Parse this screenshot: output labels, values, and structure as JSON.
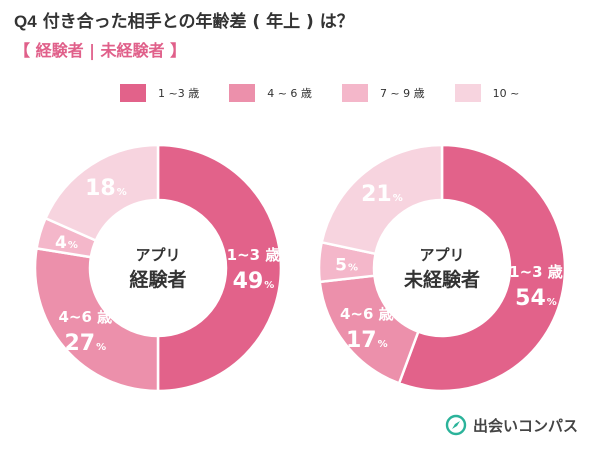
{
  "header": {
    "q_label": "Q4",
    "title": "付き合った相手との年齢差 ( 年上 ) は？",
    "subtitle": "【 経験者 | 未経験者 】"
  },
  "legend": [
    {
      "label": "1 ~3 歳",
      "color": "#e2628a"
    },
    {
      "label": "4 ~ 6 歳",
      "color": "#ec90ab"
    },
    {
      "label": "7 ~ 9 歳",
      "color": "#f4b7ca"
    },
    {
      "label": "10 ~",
      "color": "#f7d4df"
    }
  ],
  "chart_data": [
    {
      "type": "pie",
      "donut": true,
      "center_label": [
        "アプリ",
        "経験者"
      ],
      "categories": [
        "1~3 歳",
        "4~6 歳",
        "7~9 歳",
        "10 ~"
      ],
      "values": [
        49,
        27,
        4,
        18
      ],
      "value_unit": "%",
      "colors": [
        "#e2628a",
        "#ec90ab",
        "#f4b7ca",
        "#f7d4df"
      ],
      "data_labels": [
        {
          "name": "1~3 歳",
          "value": "49",
          "unit": "%"
        },
        {
          "name": "4~6 歳",
          "value": "27",
          "unit": "%"
        },
        {
          "name": "",
          "value": "4",
          "unit": "%"
        },
        {
          "name": "",
          "value": "18",
          "unit": "%"
        }
      ]
    },
    {
      "type": "pie",
      "donut": true,
      "center_label": [
        "アプリ",
        "未経験者"
      ],
      "categories": [
        "1~3 歳",
        "4~6 歳",
        "7~9 歳",
        "10 ~"
      ],
      "values": [
        54,
        17,
        5,
        21
      ],
      "value_unit": "%",
      "colors": [
        "#e2628a",
        "#ec90ab",
        "#f4b7ca",
        "#f7d4df"
      ],
      "data_labels": [
        {
          "name": "1~3 歳",
          "value": "54",
          "unit": "%"
        },
        {
          "name": "4~6 歳",
          "value": "17",
          "unit": "%"
        },
        {
          "name": "",
          "value": "5",
          "unit": "%"
        },
        {
          "name": "",
          "value": "21",
          "unit": "%"
        }
      ]
    }
  ],
  "brand": {
    "name": "出会いコンパス",
    "icon": "compass-icon",
    "icon_colors": [
      "#2bb39a",
      "#e2628a"
    ]
  }
}
